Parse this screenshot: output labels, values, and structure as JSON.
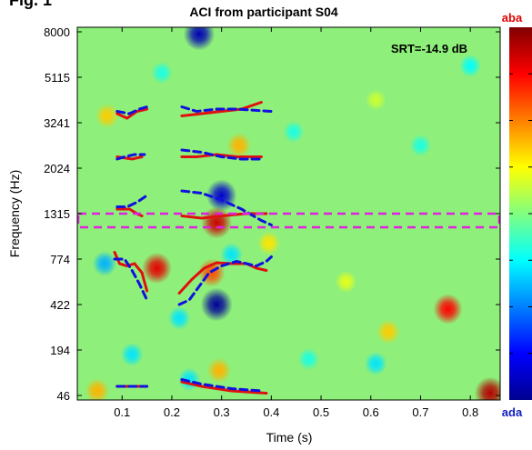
{
  "figure_label": "Fig. 1",
  "chart_data": {
    "type": "heatmap",
    "title": "ACI from participant S04",
    "xlabel": "Time (s)",
    "ylabel": "Frequency (Hz)",
    "x_ticks": [
      0.1,
      0.2,
      0.3,
      0.4,
      0.5,
      0.6,
      0.7,
      0.8
    ],
    "x_tick_labels": [
      "0.1",
      "0.2",
      "0.3",
      "0.4",
      "0.5",
      "0.6",
      "0.7",
      "0.8"
    ],
    "xlim": [
      0.01,
      0.86
    ],
    "y_tick_labels": [
      "8000",
      "5115",
      "3241",
      "2024",
      "1315",
      "774",
      "422",
      "194",
      "46"
    ],
    "annotation": "SRT=-14.9 dB",
    "colorbar": {
      "top_label": "aba",
      "bottom_label": "ada",
      "colormap": "jet"
    },
    "background_color": "#8ef07a",
    "blobs": [
      {
        "x": 0.255,
        "band": 0.05,
        "value": -0.9
      },
      {
        "x": 0.3,
        "band": 3.6,
        "value": -0.85
      },
      {
        "x": 0.29,
        "band": 4.2,
        "value": 0.85
      },
      {
        "x": 0.29,
        "band": 6.0,
        "value": -0.95
      },
      {
        "x": 0.28,
        "band": 5.3,
        "value": 0.6
      },
      {
        "x": 0.17,
        "band": 5.2,
        "value": 0.8
      },
      {
        "x": 0.065,
        "band": 5.1,
        "value": -0.4
      },
      {
        "x": 0.07,
        "band": 1.85,
        "value": 0.35
      },
      {
        "x": 0.335,
        "band": 2.5,
        "value": 0.4
      },
      {
        "x": 0.755,
        "band": 6.1,
        "value": 0.75
      },
      {
        "x": 0.84,
        "band": 7.95,
        "value": 0.9
      },
      {
        "x": 0.32,
        "band": 4.9,
        "value": -0.3
      },
      {
        "x": 0.215,
        "band": 6.3,
        "value": -0.3
      },
      {
        "x": 0.61,
        "band": 7.3,
        "value": -0.3
      },
      {
        "x": 0.635,
        "band": 6.6,
        "value": 0.35
      },
      {
        "x": 0.295,
        "band": 7.45,
        "value": 0.4
      },
      {
        "x": 0.395,
        "band": 4.65,
        "value": 0.3
      },
      {
        "x": 0.12,
        "band": 7.1,
        "value": -0.3
      },
      {
        "x": 0.18,
        "band": 0.9,
        "value": -0.2
      },
      {
        "x": 0.8,
        "band": 0.75,
        "value": -0.25
      },
      {
        "x": 0.7,
        "band": 2.5,
        "value": -0.2
      },
      {
        "x": 0.235,
        "band": 7.65,
        "value": -0.3
      },
      {
        "x": 0.55,
        "band": 5.5,
        "value": 0.2
      },
      {
        "x": 0.475,
        "band": 7.2,
        "value": -0.2
      },
      {
        "x": 0.445,
        "band": 2.2,
        "value": -0.2
      },
      {
        "x": 0.05,
        "band": 7.9,
        "value": 0.4
      },
      {
        "x": 0.61,
        "band": 1.5,
        "value": 0.15
      }
    ],
    "highlight_band": {
      "band_lo": 4.0,
      "band_hi": 4.3,
      "color": "#e020e0"
    },
    "series": [
      {
        "name": "aba",
        "color": "#e01010",
        "style": "solid",
        "segments": [
          [
            [
              0.09,
              1.8
            ],
            [
              0.11,
              1.9
            ],
            [
              0.13,
              1.75
            ],
            [
              0.15,
              1.7
            ]
          ],
          [
            [
              0.09,
              2.75
            ],
            [
              0.12,
              2.8
            ],
            [
              0.14,
              2.75
            ]
          ],
          [
            [
              0.09,
              3.9
            ],
            [
              0.115,
              3.9
            ],
            [
              0.13,
              4.0
            ],
            [
              0.14,
              4.05
            ]
          ],
          [
            [
              0.085,
              4.85
            ],
            [
              0.095,
              5.1
            ],
            [
              0.11,
              5.15
            ],
            [
              0.125,
              5.1
            ],
            [
              0.14,
              5.3
            ],
            [
              0.15,
              5.7
            ]
          ],
          [
            [
              0.09,
              7.8
            ],
            [
              0.15,
              7.8
            ]
          ],
          [
            [
              0.22,
              1.85
            ],
            [
              0.26,
              1.8
            ],
            [
              0.3,
              1.75
            ],
            [
              0.34,
              1.7
            ],
            [
              0.38,
              1.55
            ]
          ],
          [
            [
              0.22,
              2.75
            ],
            [
              0.25,
              2.75
            ],
            [
              0.29,
              2.7
            ],
            [
              0.33,
              2.75
            ],
            [
              0.38,
              2.75
            ]
          ],
          [
            [
              0.22,
              4.05
            ],
            [
              0.26,
              4.1
            ],
            [
              0.3,
              4.05
            ],
            [
              0.35,
              4.0
            ],
            [
              0.39,
              4.0
            ]
          ],
          [
            [
              0.215,
              5.75
            ],
            [
              0.24,
              5.45
            ],
            [
              0.265,
              5.2
            ],
            [
              0.29,
              5.08
            ],
            [
              0.32,
              5.1
            ],
            [
              0.35,
              5.1
            ],
            [
              0.37,
              5.2
            ],
            [
              0.39,
              5.25
            ]
          ],
          [
            [
              0.22,
              7.7
            ],
            [
              0.26,
              7.8
            ],
            [
              0.32,
              7.9
            ],
            [
              0.39,
              7.95
            ]
          ]
        ]
      },
      {
        "name": "ada",
        "color": "#1010e0",
        "style": "dashed",
        "segments": [
          [
            [
              0.09,
              1.75
            ],
            [
              0.115,
              1.8
            ],
            [
              0.135,
              1.7
            ],
            [
              0.15,
              1.65
            ]
          ],
          [
            [
              0.09,
              2.8
            ],
            [
              0.105,
              2.75
            ],
            [
              0.125,
              2.7
            ],
            [
              0.145,
              2.7
            ]
          ],
          [
            [
              0.09,
              3.85
            ],
            [
              0.11,
              3.85
            ],
            [
              0.13,
              3.75
            ],
            [
              0.15,
              3.6
            ]
          ],
          [
            [
              0.085,
              5.0
            ],
            [
              0.105,
              5.0
            ],
            [
              0.12,
              5.25
            ],
            [
              0.135,
              5.55
            ],
            [
              0.15,
              5.9
            ]
          ],
          [
            [
              0.09,
              7.8
            ],
            [
              0.15,
              7.8
            ]
          ],
          [
            [
              0.22,
              1.65
            ],
            [
              0.25,
              1.75
            ],
            [
              0.29,
              1.7
            ],
            [
              0.33,
              1.7
            ],
            [
              0.4,
              1.75
            ]
          ],
          [
            [
              0.22,
              2.6
            ],
            [
              0.26,
              2.65
            ],
            [
              0.3,
              2.75
            ],
            [
              0.34,
              2.8
            ],
            [
              0.38,
              2.8
            ]
          ],
          [
            [
              0.22,
              3.5
            ],
            [
              0.26,
              3.55
            ],
            [
              0.3,
              3.7
            ],
            [
              0.34,
              3.9
            ],
            [
              0.38,
              4.15
            ],
            [
              0.4,
              4.25
            ]
          ],
          [
            [
              0.215,
              6.0
            ],
            [
              0.235,
              5.9
            ],
            [
              0.255,
              5.6
            ],
            [
              0.275,
              5.3
            ],
            [
              0.3,
              5.15
            ],
            [
              0.33,
              5.05
            ],
            [
              0.35,
              5.1
            ],
            [
              0.37,
              5.15
            ],
            [
              0.39,
              5.05
            ],
            [
              0.4,
              4.95
            ]
          ],
          [
            [
              0.22,
              7.65
            ],
            [
              0.26,
              7.75
            ],
            [
              0.32,
              7.85
            ],
            [
              0.38,
              7.9
            ]
          ]
        ]
      }
    ]
  }
}
